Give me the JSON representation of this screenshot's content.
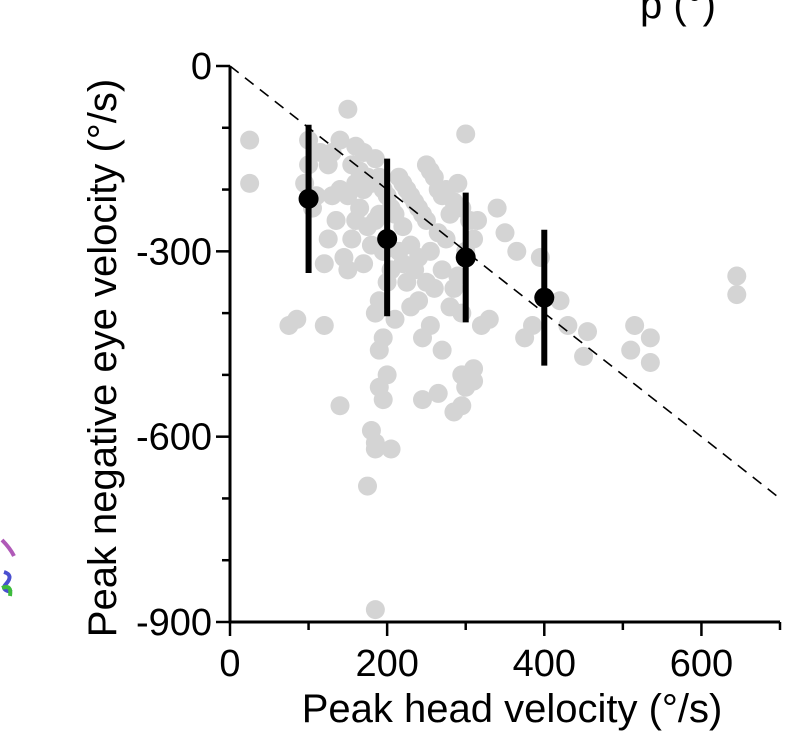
{
  "top_fragment_text": "p (°)",
  "chart_data": {
    "type": "scatter",
    "xlabel": "Peak head velocity (°/s)",
    "ylabel": "Peak negative eye velocity (°/s)",
    "xlim": [
      0,
      700
    ],
    "ylim": [
      -900,
      0
    ],
    "xticks": [
      0,
      200,
      400,
      600
    ],
    "yticks": [
      0,
      -300,
      -600,
      -900
    ],
    "xtick_labels": [
      "0",
      "200",
      "400",
      "600"
    ],
    "ytick_labels": [
      "0",
      "-300",
      "-600",
      "-900"
    ],
    "unity_line": {
      "style": "dashed",
      "from": [
        0,
        0
      ],
      "to": [
        700,
        -700
      ]
    },
    "colors": {
      "points": "#d4d4d4",
      "means": "#000000",
      "axis": "#000000"
    },
    "series": [
      {
        "x": [
          25,
          25,
          75,
          85,
          95,
          100,
          100,
          105,
          110,
          115,
          120,
          120,
          125,
          125,
          130,
          130,
          135,
          140,
          140,
          145,
          150,
          150,
          150,
          155,
          155,
          160,
          160,
          160,
          165,
          165,
          170,
          170,
          170,
          175,
          175,
          180,
          180,
          185,
          185,
          185,
          190,
          190,
          190,
          195,
          195,
          200,
          200,
          205,
          205,
          210,
          210,
          215,
          215,
          220,
          220,
          220,
          225,
          225,
          230,
          230,
          230,
          235,
          235,
          240,
          240,
          240,
          245,
          245,
          250,
          250,
          250,
          255,
          255,
          255,
          260,
          260,
          265,
          265,
          270,
          270,
          270,
          275,
          275,
          280,
          280,
          285,
          285,
          290,
          290,
          295,
          295,
          300,
          300,
          305,
          310,
          310,
          315,
          320,
          330,
          340,
          350,
          365,
          375,
          385,
          395,
          420,
          430,
          450,
          455,
          510,
          515,
          535,
          535,
          645,
          645,
          140,
          180,
          185,
          190,
          195,
          200,
          190,
          195,
          175,
          185,
          205,
          245,
          265,
          285,
          295,
          310,
          300,
          295,
          185
        ],
        "y": [
          -120,
          -190,
          -420,
          -410,
          -190,
          -160,
          -120,
          -230,
          -210,
          -140,
          -320,
          -420,
          -280,
          -160,
          -210,
          -140,
          -250,
          -120,
          -200,
          -310,
          -70,
          -210,
          -330,
          -160,
          -280,
          -130,
          -190,
          -250,
          -170,
          -230,
          -140,
          -200,
          -320,
          -180,
          -260,
          -190,
          -290,
          -150,
          -250,
          -400,
          -180,
          -240,
          -380,
          -200,
          -300,
          -210,
          -350,
          -230,
          -330,
          -240,
          -410,
          -180,
          -300,
          -190,
          -260,
          -320,
          -200,
          -350,
          -210,
          -290,
          -390,
          -220,
          -330,
          -230,
          -310,
          -380,
          -240,
          -440,
          -160,
          -250,
          -350,
          -170,
          -300,
          -420,
          -180,
          -360,
          -200,
          -270,
          -210,
          -330,
          -460,
          -200,
          -280,
          -240,
          -390,
          -220,
          -360,
          -190,
          -340,
          -230,
          -400,
          -110,
          -300,
          -250,
          -280,
          -490,
          -250,
          -420,
          -410,
          -230,
          -270,
          -300,
          -440,
          -420,
          -310,
          -380,
          -420,
          -470,
          -430,
          -460,
          -420,
          -440,
          -480,
          -340,
          -370,
          -550,
          -590,
          -620,
          -520,
          -540,
          -500,
          -460,
          -440,
          -680,
          -880,
          -620,
          -540,
          -530,
          -560,
          -550,
          -510,
          -520,
          -500,
          -610
        ]
      },
      {
        "name": "",
        "kind": "mean_with_error",
        "x": [
          100,
          200,
          300,
          400
        ],
        "y": [
          -215,
          -280,
          -310,
          -375
        ],
        "err_low": [
          -335,
          -405,
          -415,
          -485
        ],
        "err_high": [
          -95,
          -150,
          -205,
          -265
        ]
      }
    ]
  }
}
